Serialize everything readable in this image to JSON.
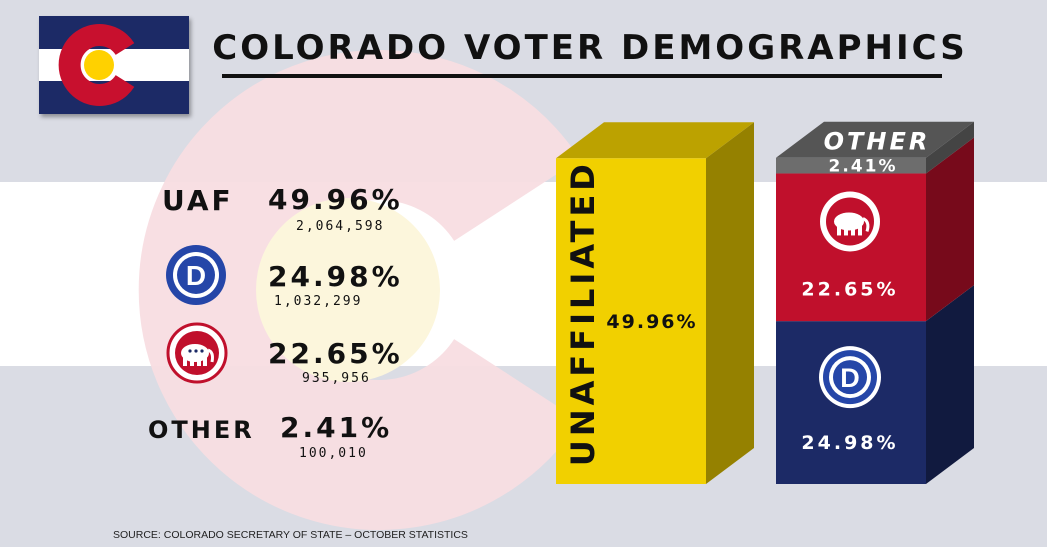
{
  "title": "COLORADO VOTER DEMOGRAPHICS",
  "source": "SOURCE: COLORADO SECRETARY OF STATE – OCTOBER STATISTICS",
  "icons": {
    "flag": "colorado-flag-icon",
    "democrat": "democratic-party-d-icon",
    "republican": "republican-elephant-icon"
  },
  "colors": {
    "unaffiliated": "#f1d000",
    "republican": "#c0102c",
    "democrat": "#1c2a66",
    "other": "#6d6d6d",
    "flag_blue": "#1c2a66",
    "flag_red": "#c8102e",
    "flag_gold": "#ffd100"
  },
  "legend": [
    {
      "label": "UAF",
      "pct": "49.96%",
      "count": "2,064,598"
    },
    {
      "label": "",
      "icon": "democratic-party-d-icon",
      "pct": "24.98%",
      "count": "1,032,299"
    },
    {
      "label": "",
      "icon": "republican-elephant-icon",
      "pct": "22.65%",
      "count": "935,956"
    },
    {
      "label": "OTHER",
      "pct": "2.41%",
      "count": "100,010"
    }
  ],
  "chart_data": {
    "type": "bar",
    "stacked": true,
    "categories": [
      "UNAFFILIATED",
      ""
    ],
    "series": [
      {
        "name": "UNAFFILIATED",
        "values": [
          49.96,
          0
        ],
        "label": "49.96%",
        "color": "#f1d000"
      },
      {
        "name": "",
        "icon": "democratic-party-d-icon",
        "values": [
          0,
          24.98
        ],
        "label": "24.98%",
        "color": "#1c2a66"
      },
      {
        "name": "",
        "icon": "republican-elephant-icon",
        "values": [
          0,
          22.65
        ],
        "label": "22.65%",
        "color": "#c0102c"
      },
      {
        "name": "OTHER",
        "values": [
          0,
          2.41
        ],
        "label": "2.41%",
        "color": "#6d6d6d"
      }
    ],
    "ylim": [
      0,
      50
    ],
    "grid": false,
    "title": "",
    "xlabel": "",
    "ylabel": ""
  }
}
